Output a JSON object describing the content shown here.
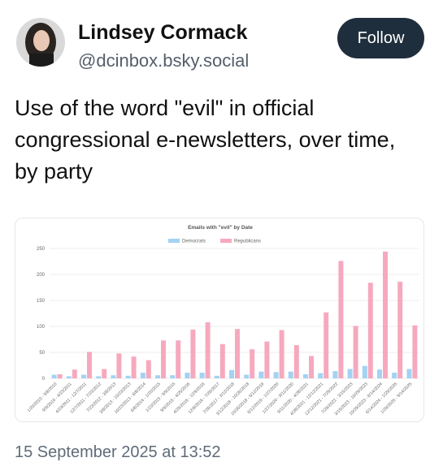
{
  "post": {
    "author_name": "Lindsey Cormack",
    "handle": "@dcinbox.bsky.social",
    "follow": "Follow",
    "text": "Use of the word \"evil\" in official congressional e-newsletters, over time, by party",
    "timestamp": "15 September 2025 at 13:52"
  },
  "chart_data": {
    "type": "bar",
    "title": "Emails with \"evil\" by Date",
    "categories": [
      "1/20/2010 - 9/8/2010",
      "9/9/2010 - 4/23/2011",
      "4/23/2011 - 12/7/2011",
      "12/7/2011 - 7/23/2012",
      "7/23/2012 - 3/8/2013",
      "3/8/2013 - 10/23/2013",
      "10/23/2013 - 6/8/2014",
      "6/8/2014 - 1/23/2015",
      "1/23/2015 - 9/9/2015",
      "9/9/2015 - 4/25/2016",
      "4/25/2016 - 12/9/2016",
      "12/9/2016 - 7/26/2017",
      "7/26/2017 - 3/12/2018",
      "3/12/2018 - 10/26/2018",
      "10/26/2018 - 6/12/2019",
      "6/12/2019 - 1/27/2020",
      "1/27/2020 - 9/11/2020",
      "9/11/2020 - 4/28/2021",
      "4/28/2021 - 12/12/2021",
      "12/12/2021 - 7/29/2022",
      "7/29/2022 - 3/15/2023",
      "3/15/2023 - 10/29/2023",
      "10/29/2023 - 6/14/2024",
      "6/14/2024 - 1/29/2025",
      "1/29/2025 - 9/14/2025"
    ],
    "series": [
      {
        "name": "Democrats",
        "color": "#a3d2f2",
        "values": [
          7,
          4,
          7,
          4,
          6,
          5,
          11,
          6,
          6,
          11,
          11,
          5,
          16,
          7,
          13,
          12,
          13,
          8,
          10,
          14,
          18,
          24,
          17,
          11,
          18
        ]
      },
      {
        "name": "Republicans",
        "color": "#f6a9be",
        "values": [
          8,
          17,
          51,
          18,
          48,
          42,
          35,
          73,
          73,
          94,
          108,
          66,
          95,
          56,
          71,
          93,
          64,
          43,
          127,
          226,
          101,
          184,
          244,
          186,
          102
        ]
      }
    ],
    "ylim": [
      0,
      250
    ],
    "yticks": [
      0,
      50,
      100,
      150,
      200,
      250
    ],
    "grid": true,
    "legend": "top"
  }
}
